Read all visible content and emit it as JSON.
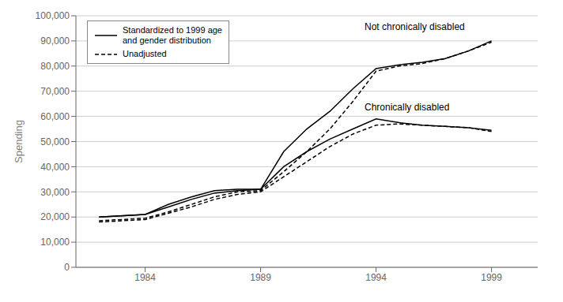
{
  "chart_data": {
    "type": "line",
    "ylabel": "Spending",
    "x": [
      1982,
      1984,
      1985,
      1986,
      1987,
      1988,
      1989,
      1990,
      1991,
      1992,
      1993,
      1994,
      1995,
      1996,
      1997,
      1998,
      1999
    ],
    "series": [
      {
        "name": "Standardized to 1999 age\nand gender distribution",
        "color": "#000000",
        "line_style": "solid",
        "values": [
          20000,
          21000,
          25000,
          28000,
          30500,
          31000,
          31000,
          46000,
          55000,
          62000,
          71000,
          79000,
          80500,
          81500,
          83000,
          86000,
          90000
        ]
      },
      {
        "name": "Unadjusted",
        "color": "#000000",
        "line_style": "dashed",
        "values": [
          18500,
          19500,
          22000,
          25000,
          28000,
          30000,
          30500,
          38000,
          46000,
          55000,
          66000,
          78000,
          80000,
          81000,
          83000,
          86000,
          89500
        ]
      },
      {
        "color": "#000000",
        "line_style": "solid",
        "values": [
          20000,
          21000,
          24000,
          27000,
          29500,
          30500,
          31000,
          40000,
          46000,
          51000,
          55000,
          59000,
          57500,
          56500,
          56000,
          55500,
          54500
        ]
      },
      {
        "color": "#000000",
        "line_style": "dashed",
        "values": [
          18000,
          19000,
          21500,
          24000,
          27000,
          29000,
          30000,
          36000,
          42000,
          48000,
          53000,
          56500,
          57000,
          56500,
          56000,
          55500,
          54000
        ]
      }
    ],
    "xlim": [
      1981,
      2001
    ],
    "xticks": [
      1984,
      1989,
      1994,
      1999
    ],
    "ylim": [
      0,
      100000
    ],
    "yticks": [
      0,
      {
        "value": 10000,
        "label": "10,000"
      },
      {
        "value": 20000,
        "label": "20,000"
      },
      {
        "value": 30000,
        "label": "30,000"
      },
      {
        "value": 40000,
        "label": "40,000"
      },
      {
        "value": 50000,
        "label": "50,000"
      },
      {
        "value": 60000,
        "label": "60,000"
      },
      {
        "value": 70000,
        "label": "70,000"
      },
      {
        "value": 80000,
        "label": "80,000"
      },
      {
        "value": 90000,
        "label": "90,000"
      },
      {
        "value": 100000,
        "label": "100,000"
      }
    ],
    "grid": "y",
    "legend": "upper left",
    "annotations": [
      {
        "text": "Not chronically disabled",
        "x": 1993.5,
        "y": 97000
      },
      {
        "text": "Chronically disabled",
        "x": 1993.5,
        "y": 65000
      }
    ]
  }
}
